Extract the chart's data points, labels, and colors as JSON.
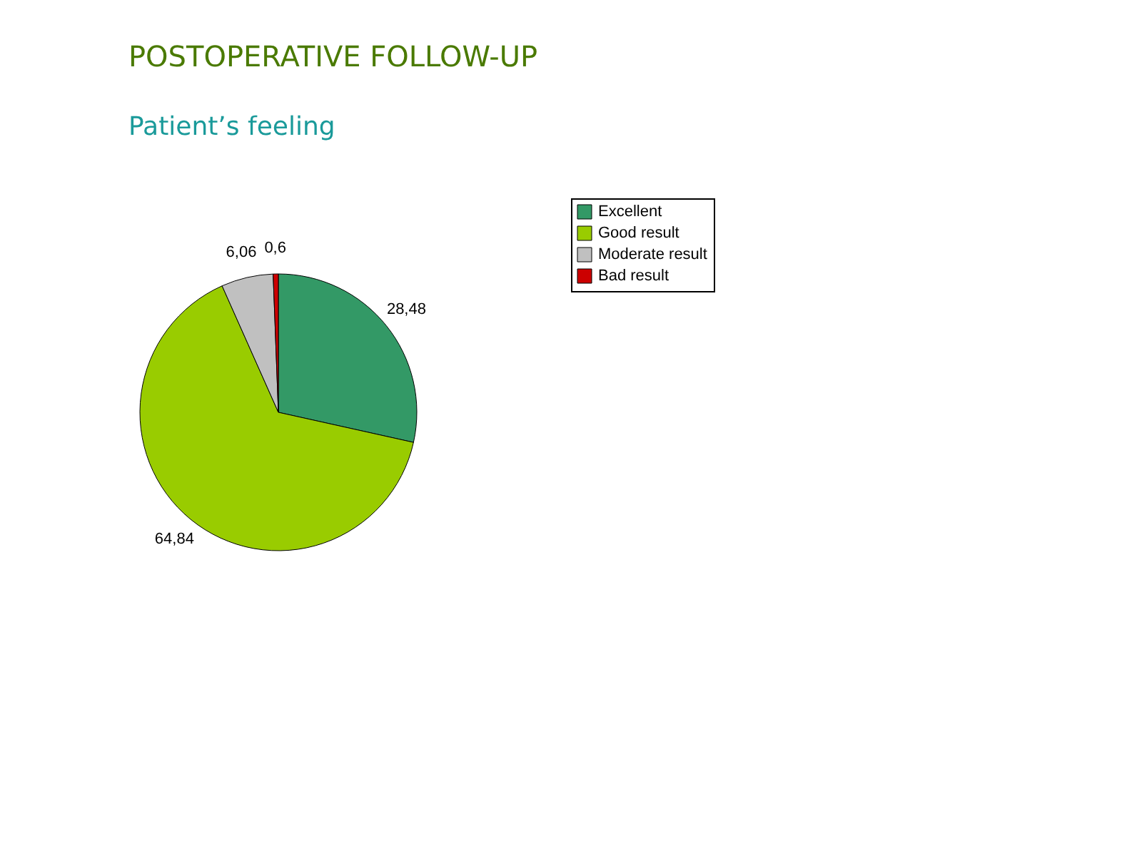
{
  "chart_data": {
    "type": "pie",
    "title": "POSTOPERATIVE FOLLOW-UP",
    "subtitle": "Patient’s feeling",
    "categories": [
      "Excellent",
      "Good result",
      "Moderate result",
      "Bad result"
    ],
    "values": [
      28.48,
      64.84,
      6.06,
      0.6
    ],
    "value_labels": [
      "28,48",
      "64,84",
      "6,06",
      "0,6"
    ],
    "colors": [
      "#339966",
      "#99cc00",
      "#c0c0c0",
      "#cc0000"
    ],
    "legend": "right"
  }
}
